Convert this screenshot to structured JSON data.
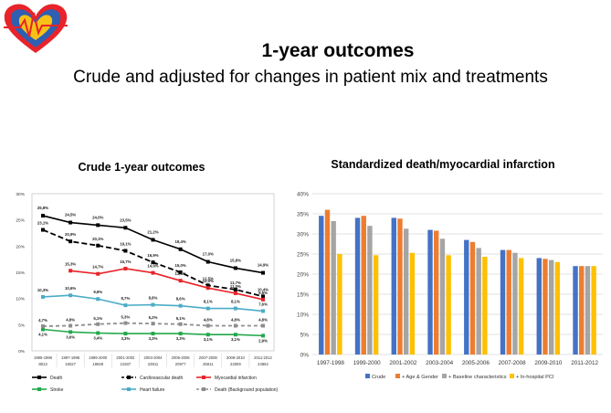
{
  "header": {
    "title": "1-year outcomes",
    "subtitle": "Crude and adjusted for changes in patient mix and treatments"
  },
  "colors": {
    "heart_red": "#e8232a",
    "heart_blue": "#2f5fb3",
    "heart_yellow": "#f6c218"
  },
  "chart_data": [
    {
      "type": "line",
      "title": "Crude 1-year outcomes",
      "categories": [
        "1995-1996",
        "1997-1998",
        "1999-2000",
        "2001-2002",
        "2003-2004",
        "2005-2006",
        "2007-2008",
        "2009-2010",
        "2011-2012"
      ],
      "n_values": [
        "8813",
        "16027",
        "18848",
        "21937",
        "23911",
        "20977",
        "25811",
        "23009",
        "24862"
      ],
      "yticks": [
        "0%",
        "5%",
        "10%",
        "15%",
        "20%",
        "25%",
        "30%"
      ],
      "ylim": [
        0,
        30
      ],
      "series": [
        {
          "name": "Death",
          "color": "#000000",
          "dash": false,
          "values": [
            25.8,
            24.5,
            24.0,
            23.5,
            21.2,
            19.4,
            17.0,
            15.8,
            14.9
          ],
          "labels": [
            "25,8%",
            "24,5%",
            "24,0%",
            "23,5%",
            "21,2%",
            "19,4%",
            "17,0%",
            "15,8%",
            "14,9%"
          ]
        },
        {
          "name": "Cardiovascular death",
          "color": "#000000",
          "dash": true,
          "values": [
            23.1,
            20.9,
            20.1,
            19.1,
            16.9,
            15.0,
            12.5,
            11.7,
            10.4
          ],
          "labels": [
            "23,1%",
            "20,9%",
            "20,1%",
            "19,1%",
            "16,9%",
            "15,0%",
            "12,5%",
            "11,7%",
            "10,4%"
          ]
        },
        {
          "name": "Myocardial infarction",
          "color": "#e8232a",
          "dash": false,
          "values": [
            null,
            15.3,
            14.7,
            15.7,
            14.9,
            13.4,
            12.0,
            11.0,
            9.8
          ],
          "labels": [
            "",
            "15,3%",
            "14,7%",
            "15,7%",
            "14,9%",
            "13,4%",
            "12,0%",
            "11,0%",
            "9,8%"
          ]
        },
        {
          "name": "Stroke",
          "color": "#22a84a",
          "dash": false,
          "values": [
            4.1,
            3.6,
            3.4,
            3.3,
            3.3,
            3.3,
            3.1,
            3.1,
            2.9
          ],
          "labels": [
            "4,1%",
            "3,6%",
            "3,4%",
            "3,3%",
            "3,3%",
            "3,3%",
            "3,1%",
            "3,1%",
            "2,9%"
          ]
        },
        {
          "name": "Heart failure",
          "color": "#4bacc6",
          "dash": false,
          "values": [
            10.3,
            10.6,
            9.9,
            8.7,
            8.8,
            8.6,
            8.1,
            8.1,
            7.6
          ],
          "labels": [
            "10,3%",
            "10,6%",
            "9,9%",
            "8,7%",
            "8,8%",
            "8,6%",
            "8,1%",
            "8,1%",
            "7,6%"
          ]
        },
        {
          "name": "Death (Background population)",
          "color": "#8d8d8d",
          "dash": true,
          "values": [
            4.7,
            4.8,
            5.1,
            5.3,
            5.2,
            5.1,
            4.8,
            4.8,
            4.8
          ],
          "labels": [
            "4,7%",
            "4,8%",
            "5,1%",
            "5,3%",
            "5,2%",
            "5,1%",
            "4,8%",
            "4,8%",
            "4,8%"
          ]
        }
      ]
    },
    {
      "type": "bar",
      "title": "Standardized death/myocardial infarction",
      "categories": [
        "1997-1998",
        "1999-2000",
        "2001-2002",
        "2003-2004",
        "2005-2006",
        "2007-2008",
        "2009-2010",
        "2011-2012"
      ],
      "yticks": [
        "0%",
        "5%",
        "10%",
        "15%",
        "20%",
        "25%",
        "30%",
        "35%",
        "40%"
      ],
      "ylim": [
        0,
        40
      ],
      "series": [
        {
          "name": "Crude",
          "color": "#4472c4",
          "values": [
            34.5,
            34.0,
            34.0,
            31.0,
            28.5,
            26.0,
            24.0,
            22.0
          ]
        },
        {
          "name": "+ Age & Gender",
          "color": "#ed7d31",
          "values": [
            36.0,
            34.5,
            33.8,
            30.8,
            28.0,
            26.0,
            23.8,
            22.0
          ]
        },
        {
          "name": "+ Baseline characteristics",
          "color": "#a5a5a5",
          "values": [
            33.2,
            32.0,
            31.3,
            28.8,
            26.5,
            25.3,
            23.5,
            22.0
          ]
        },
        {
          "name": "+ In-hospital PCI",
          "color": "#ffc000",
          "values": [
            25.0,
            24.7,
            25.3,
            24.7,
            24.3,
            24.0,
            23.0,
            22.0
          ]
        }
      ]
    }
  ]
}
